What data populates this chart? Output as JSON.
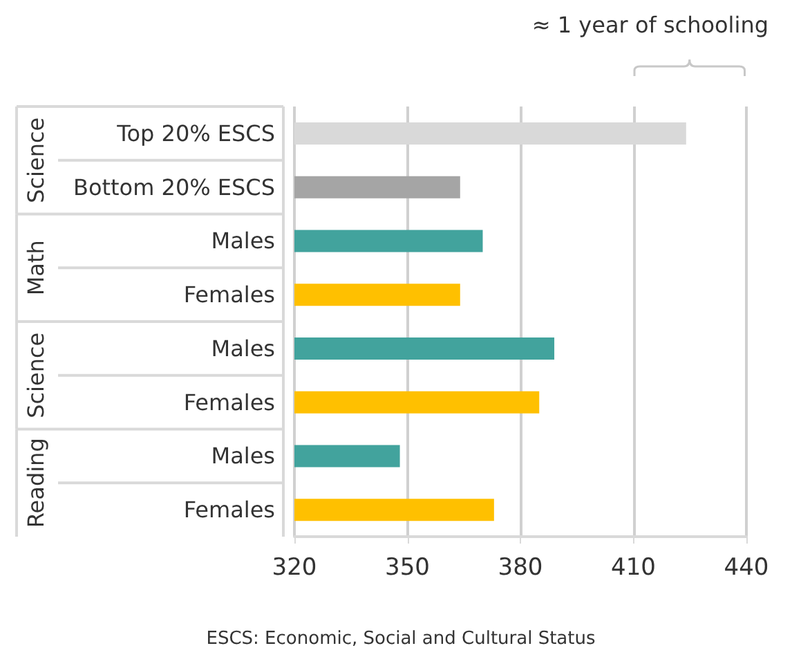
{
  "chart_data": {
    "type": "bar",
    "orientation": "horizontal",
    "categories": [
      "Top 20% ESCS",
      "Bottom 20% ESCS",
      "Males",
      "Females",
      "Males",
      "Females",
      "Males",
      "Females"
    ],
    "values": [
      424,
      364,
      370,
      364,
      389,
      385,
      348,
      373
    ],
    "colors": [
      "#d9d9d9",
      "#a5a5a5",
      "#42a39d",
      "#ffc000",
      "#42a39d",
      "#ffc000",
      "#42a39d",
      "#ffc000"
    ],
    "xlim": [
      320,
      440
    ],
    "xticks": [
      320,
      350,
      380,
      410,
      440
    ],
    "grid": "x",
    "annotations": [
      "Science",
      "Math",
      "Science",
      "Reading",
      "≈ 1 year of schooling",
      "ESCS: Economic, Social and Cultural Status"
    ]
  }
}
